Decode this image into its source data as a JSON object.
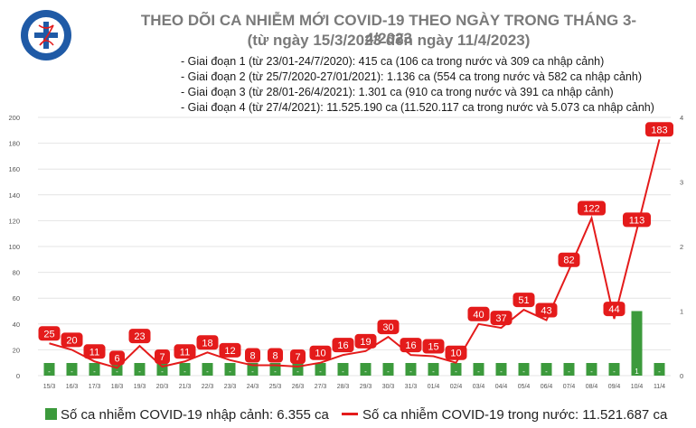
{
  "header": {
    "title_line1": "THEO DÕI CA NHIỄM MỚI COVID-19 THEO NGÀY TRONG THÁNG 3-4/2023",
    "title_line2": "(từ ngày 15/3/2023 đến ngày 11/4/2023)",
    "logo_text": "BỘ Y TẾ · MINISTRY OF HEALTH"
  },
  "notes": [
    "- Giai đoạn 1 (từ 23/01-24/7/2020): 415 ca (106 ca trong nước và 309 ca nhập cảnh)",
    "- Giai đoạn 2 (từ 25/7/2020-27/01/2021): 1.136 ca (554 ca trong nước và 582 ca nhập cảnh)",
    "- Giai đoạn 3 (từ 28/01-26/4/2021): 1.301 ca (910 ca trong nước và 391 ca nhập cảnh)",
    "- Giai đoạn 4 (từ 27/4/2021): 11.525.190 ca (11.520.117 ca trong nước và 5.073 ca nhập cảnh)"
  ],
  "colors": {
    "bar": "#3c9a3c",
    "line": "#e41b1b",
    "label_fill": "#e41b1b",
    "label_text": "#ffffff",
    "grid": "#e4e4e4",
    "axis_text": "#555555"
  },
  "chart_data": {
    "type": "bar+line",
    "categories": [
      "15/3",
      "16/3",
      "17/3",
      "18/3",
      "19/3",
      "20/3",
      "21/3",
      "22/3",
      "23/3",
      "24/3",
      "25/3",
      "26/3",
      "27/3",
      "28/3",
      "29/3",
      "30/3",
      "31/3",
      "01/4",
      "02/4",
      "03/4",
      "04/4",
      "05/4",
      "06/4",
      "07/4",
      "08/4",
      "09/4",
      "10/4",
      "11/4"
    ],
    "series": [
      {
        "name": "Số ca nhiễm COVID-19 nhập cảnh: 6.355 ca",
        "type": "bar",
        "axis": "right",
        "values": [
          0,
          0,
          0,
          0,
          0,
          0,
          0,
          0,
          0,
          0,
          0,
          0,
          0,
          0,
          0,
          0,
          0,
          0,
          0,
          0,
          0,
          0,
          0,
          0,
          0,
          0,
          1,
          0
        ],
        "labels": [
          "-",
          "-",
          "-",
          "-",
          "-",
          "-",
          "-",
          "-",
          "-",
          "-",
          "-",
          "-",
          "-",
          "-",
          "-",
          "-",
          "-",
          "-",
          "-",
          "-",
          "-",
          "-",
          "-",
          "-",
          "-",
          "-",
          "1",
          "-"
        ]
      },
      {
        "name": "Số ca nhiễm COVID-19 trong nước: 11.521.687 ca",
        "type": "line",
        "axis": "left",
        "values": [
          25,
          20,
          11,
          6,
          23,
          7,
          11,
          18,
          12,
          8,
          8,
          7,
          10,
          16,
          19,
          30,
          16,
          15,
          10,
          40,
          37,
          51,
          43,
          82,
          122,
          44,
          113,
          183
        ]
      }
    ],
    "y_left": {
      "min": 0,
      "max": 200,
      "ticks": [
        0,
        20,
        40,
        60,
        80,
        100,
        120,
        140,
        160,
        180,
        200
      ]
    },
    "y_right": {
      "min": 0,
      "max": 4,
      "ticks": [
        0,
        1,
        2,
        3,
        4
      ]
    },
    "grid": true,
    "legend_position": "bottom"
  }
}
